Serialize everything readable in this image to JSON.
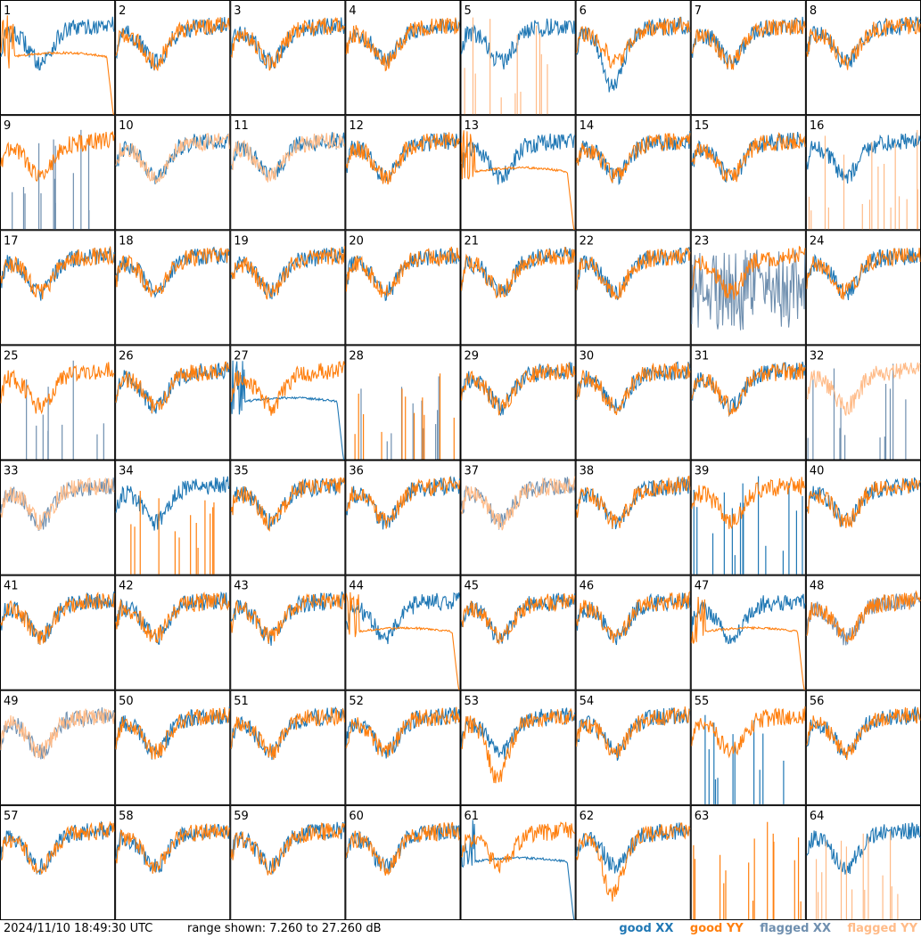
{
  "timestamp": "2024/11/10 18:49:30 UTC",
  "range_text": "range shown: 7.260 to 27.260 dB",
  "legend": {
    "good_xx": "good XX",
    "good_yy": "good YY",
    "flagged_xx": "flagged XX",
    "flagged_yy": "flagged YY"
  },
  "colors": {
    "good_xx": "#1f77b4",
    "good_yy": "#ff7f0e",
    "flagged_xx": "#6f8faf",
    "flagged_yy": "#ffbb88",
    "grid": "#000000"
  },
  "chart_data": {
    "type": "line",
    "layout": "8x8 small multiples, spectrum per antenna",
    "ylim": [
      7.26,
      27.26
    ],
    "y_unit": "dB",
    "panels": [
      {
        "label": "1",
        "xx": "good",
        "yy": "good",
        "xx_mode": "normal",
        "yy_mode": "drop"
      },
      {
        "label": "2",
        "xx": "good",
        "yy": "good",
        "xx_mode": "normal",
        "yy_mode": "normal"
      },
      {
        "label": "3",
        "xx": "good",
        "yy": "good",
        "xx_mode": "normal",
        "yy_mode": "normal"
      },
      {
        "label": "4",
        "xx": "good",
        "yy": "good",
        "xx_mode": "normal",
        "yy_mode": "normal"
      },
      {
        "label": "5",
        "xx": "good",
        "yy": "flagged",
        "xx_mode": "normal",
        "yy_mode": "spikes"
      },
      {
        "label": "6",
        "xx": "good",
        "yy": "good",
        "xx_mode": "dip",
        "yy_mode": "normal"
      },
      {
        "label": "7",
        "xx": "good",
        "yy": "good",
        "xx_mode": "normal",
        "yy_mode": "normal"
      },
      {
        "label": "8",
        "xx": "good",
        "yy": "good",
        "xx_mode": "normal",
        "yy_mode": "normal"
      },
      {
        "label": "9",
        "xx": "flagged",
        "yy": "good",
        "xx_mode": "spikes",
        "yy_mode": "normal"
      },
      {
        "label": "10",
        "xx": "good",
        "yy": "flagged",
        "xx_mode": "normal",
        "yy_mode": "normal"
      },
      {
        "label": "11",
        "xx": "good",
        "yy": "flagged",
        "xx_mode": "normal",
        "yy_mode": "normal"
      },
      {
        "label": "12",
        "xx": "good",
        "yy": "good",
        "xx_mode": "normal",
        "yy_mode": "normal"
      },
      {
        "label": "13",
        "xx": "good",
        "yy": "good",
        "xx_mode": "normal",
        "yy_mode": "drop"
      },
      {
        "label": "14",
        "xx": "good",
        "yy": "good",
        "xx_mode": "normal",
        "yy_mode": "normal"
      },
      {
        "label": "15",
        "xx": "good",
        "yy": "good",
        "xx_mode": "normal",
        "yy_mode": "normal"
      },
      {
        "label": "16",
        "xx": "good",
        "yy": "flagged",
        "xx_mode": "normal",
        "yy_mode": "spikes"
      },
      {
        "label": "17",
        "xx": "good",
        "yy": "good",
        "xx_mode": "normal",
        "yy_mode": "normal"
      },
      {
        "label": "18",
        "xx": "good",
        "yy": "good",
        "xx_mode": "normal",
        "yy_mode": "normal"
      },
      {
        "label": "19",
        "xx": "good",
        "yy": "good",
        "xx_mode": "normal",
        "yy_mode": "normal"
      },
      {
        "label": "20",
        "xx": "good",
        "yy": "good",
        "xx_mode": "normal",
        "yy_mode": "normal"
      },
      {
        "label": "21",
        "xx": "good",
        "yy": "good",
        "xx_mode": "normal",
        "yy_mode": "normal"
      },
      {
        "label": "22",
        "xx": "good",
        "yy": "good",
        "xx_mode": "normal",
        "yy_mode": "normal"
      },
      {
        "label": "23",
        "xx": "flagged",
        "yy": "good",
        "xx_mode": "noisy",
        "yy_mode": "normal"
      },
      {
        "label": "24",
        "xx": "good",
        "yy": "good",
        "xx_mode": "normal",
        "yy_mode": "normal"
      },
      {
        "label": "25",
        "xx": "flagged",
        "yy": "good",
        "xx_mode": "spikes",
        "yy_mode": "normal"
      },
      {
        "label": "26",
        "xx": "good",
        "yy": "good",
        "xx_mode": "normal",
        "yy_mode": "normal"
      },
      {
        "label": "27",
        "xx": "good",
        "yy": "good",
        "xx_mode": "drop",
        "yy_mode": "normal"
      },
      {
        "label": "28",
        "xx": "flagged",
        "yy": "good",
        "xx_mode": "spikes",
        "yy_mode": "spikes"
      },
      {
        "label": "29",
        "xx": "good",
        "yy": "good",
        "xx_mode": "normal",
        "yy_mode": "normal"
      },
      {
        "label": "30",
        "xx": "good",
        "yy": "good",
        "xx_mode": "normal",
        "yy_mode": "normal"
      },
      {
        "label": "31",
        "xx": "good",
        "yy": "good",
        "xx_mode": "normal",
        "yy_mode": "normal"
      },
      {
        "label": "32",
        "xx": "flagged",
        "yy": "flagged",
        "xx_mode": "spikes",
        "yy_mode": "normal"
      },
      {
        "label": "33",
        "xx": "flagged",
        "yy": "flagged",
        "xx_mode": "normal",
        "yy_mode": "normal"
      },
      {
        "label": "34",
        "xx": "good",
        "yy": "good",
        "xx_mode": "normal",
        "yy_mode": "spikes"
      },
      {
        "label": "35",
        "xx": "good",
        "yy": "good",
        "xx_mode": "normal",
        "yy_mode": "normal"
      },
      {
        "label": "36",
        "xx": "good",
        "yy": "good",
        "xx_mode": "normal",
        "yy_mode": "normal"
      },
      {
        "label": "37",
        "xx": "flagged",
        "yy": "flagged",
        "xx_mode": "normal",
        "yy_mode": "normal"
      },
      {
        "label": "38",
        "xx": "good",
        "yy": "good",
        "xx_mode": "normal",
        "yy_mode": "normal"
      },
      {
        "label": "39",
        "xx": "good",
        "yy": "good",
        "xx_mode": "spikes",
        "yy_mode": "normal"
      },
      {
        "label": "40",
        "xx": "good",
        "yy": "good",
        "xx_mode": "normal",
        "yy_mode": "normal"
      },
      {
        "label": "41",
        "xx": "good",
        "yy": "good",
        "xx_mode": "normal",
        "yy_mode": "normal"
      },
      {
        "label": "42",
        "xx": "good",
        "yy": "good",
        "xx_mode": "normal",
        "yy_mode": "normal"
      },
      {
        "label": "43",
        "xx": "good",
        "yy": "good",
        "xx_mode": "normal",
        "yy_mode": "normal"
      },
      {
        "label": "44",
        "xx": "good",
        "yy": "good",
        "xx_mode": "normal",
        "yy_mode": "drop"
      },
      {
        "label": "45",
        "xx": "good",
        "yy": "good",
        "xx_mode": "normal",
        "yy_mode": "normal"
      },
      {
        "label": "46",
        "xx": "good",
        "yy": "good",
        "xx_mode": "normal",
        "yy_mode": "normal"
      },
      {
        "label": "47",
        "xx": "good",
        "yy": "good",
        "xx_mode": "normal",
        "yy_mode": "drop"
      },
      {
        "label": "48",
        "xx": "flagged",
        "yy": "good",
        "xx_mode": "normal",
        "yy_mode": "normal"
      },
      {
        "label": "49",
        "xx": "flagged",
        "yy": "flagged",
        "xx_mode": "normal",
        "yy_mode": "normal"
      },
      {
        "label": "50",
        "xx": "good",
        "yy": "good",
        "xx_mode": "normal",
        "yy_mode": "normal"
      },
      {
        "label": "51",
        "xx": "good",
        "yy": "good",
        "xx_mode": "normal",
        "yy_mode": "normal"
      },
      {
        "label": "52",
        "xx": "good",
        "yy": "good",
        "xx_mode": "normal",
        "yy_mode": "normal"
      },
      {
        "label": "53",
        "xx": "good",
        "yy": "good",
        "xx_mode": "normal",
        "yy_mode": "dip"
      },
      {
        "label": "54",
        "xx": "good",
        "yy": "good",
        "xx_mode": "normal",
        "yy_mode": "normal"
      },
      {
        "label": "55",
        "xx": "good",
        "yy": "good",
        "xx_mode": "spikes",
        "yy_mode": "normal"
      },
      {
        "label": "56",
        "xx": "good",
        "yy": "good",
        "xx_mode": "normal",
        "yy_mode": "normal"
      },
      {
        "label": "57",
        "xx": "good",
        "yy": "good",
        "xx_mode": "normal",
        "yy_mode": "normal"
      },
      {
        "label": "58",
        "xx": "good",
        "yy": "good",
        "xx_mode": "normal",
        "yy_mode": "normal"
      },
      {
        "label": "59",
        "xx": "good",
        "yy": "good",
        "xx_mode": "normal",
        "yy_mode": "normal"
      },
      {
        "label": "60",
        "xx": "good",
        "yy": "good",
        "xx_mode": "normal",
        "yy_mode": "normal"
      },
      {
        "label": "61",
        "xx": "good",
        "yy": "good",
        "xx_mode": "drop",
        "yy_mode": "normal"
      },
      {
        "label": "62",
        "xx": "good",
        "yy": "good",
        "xx_mode": "normal",
        "yy_mode": "dip"
      },
      {
        "label": "63",
        "xx": "good",
        "yy": "good",
        "xx_mode": "none",
        "yy_mode": "spikes"
      },
      {
        "label": "64",
        "xx": "good",
        "yy": "flagged",
        "xx_mode": "normal",
        "yy_mode": "spikes"
      }
    ]
  }
}
